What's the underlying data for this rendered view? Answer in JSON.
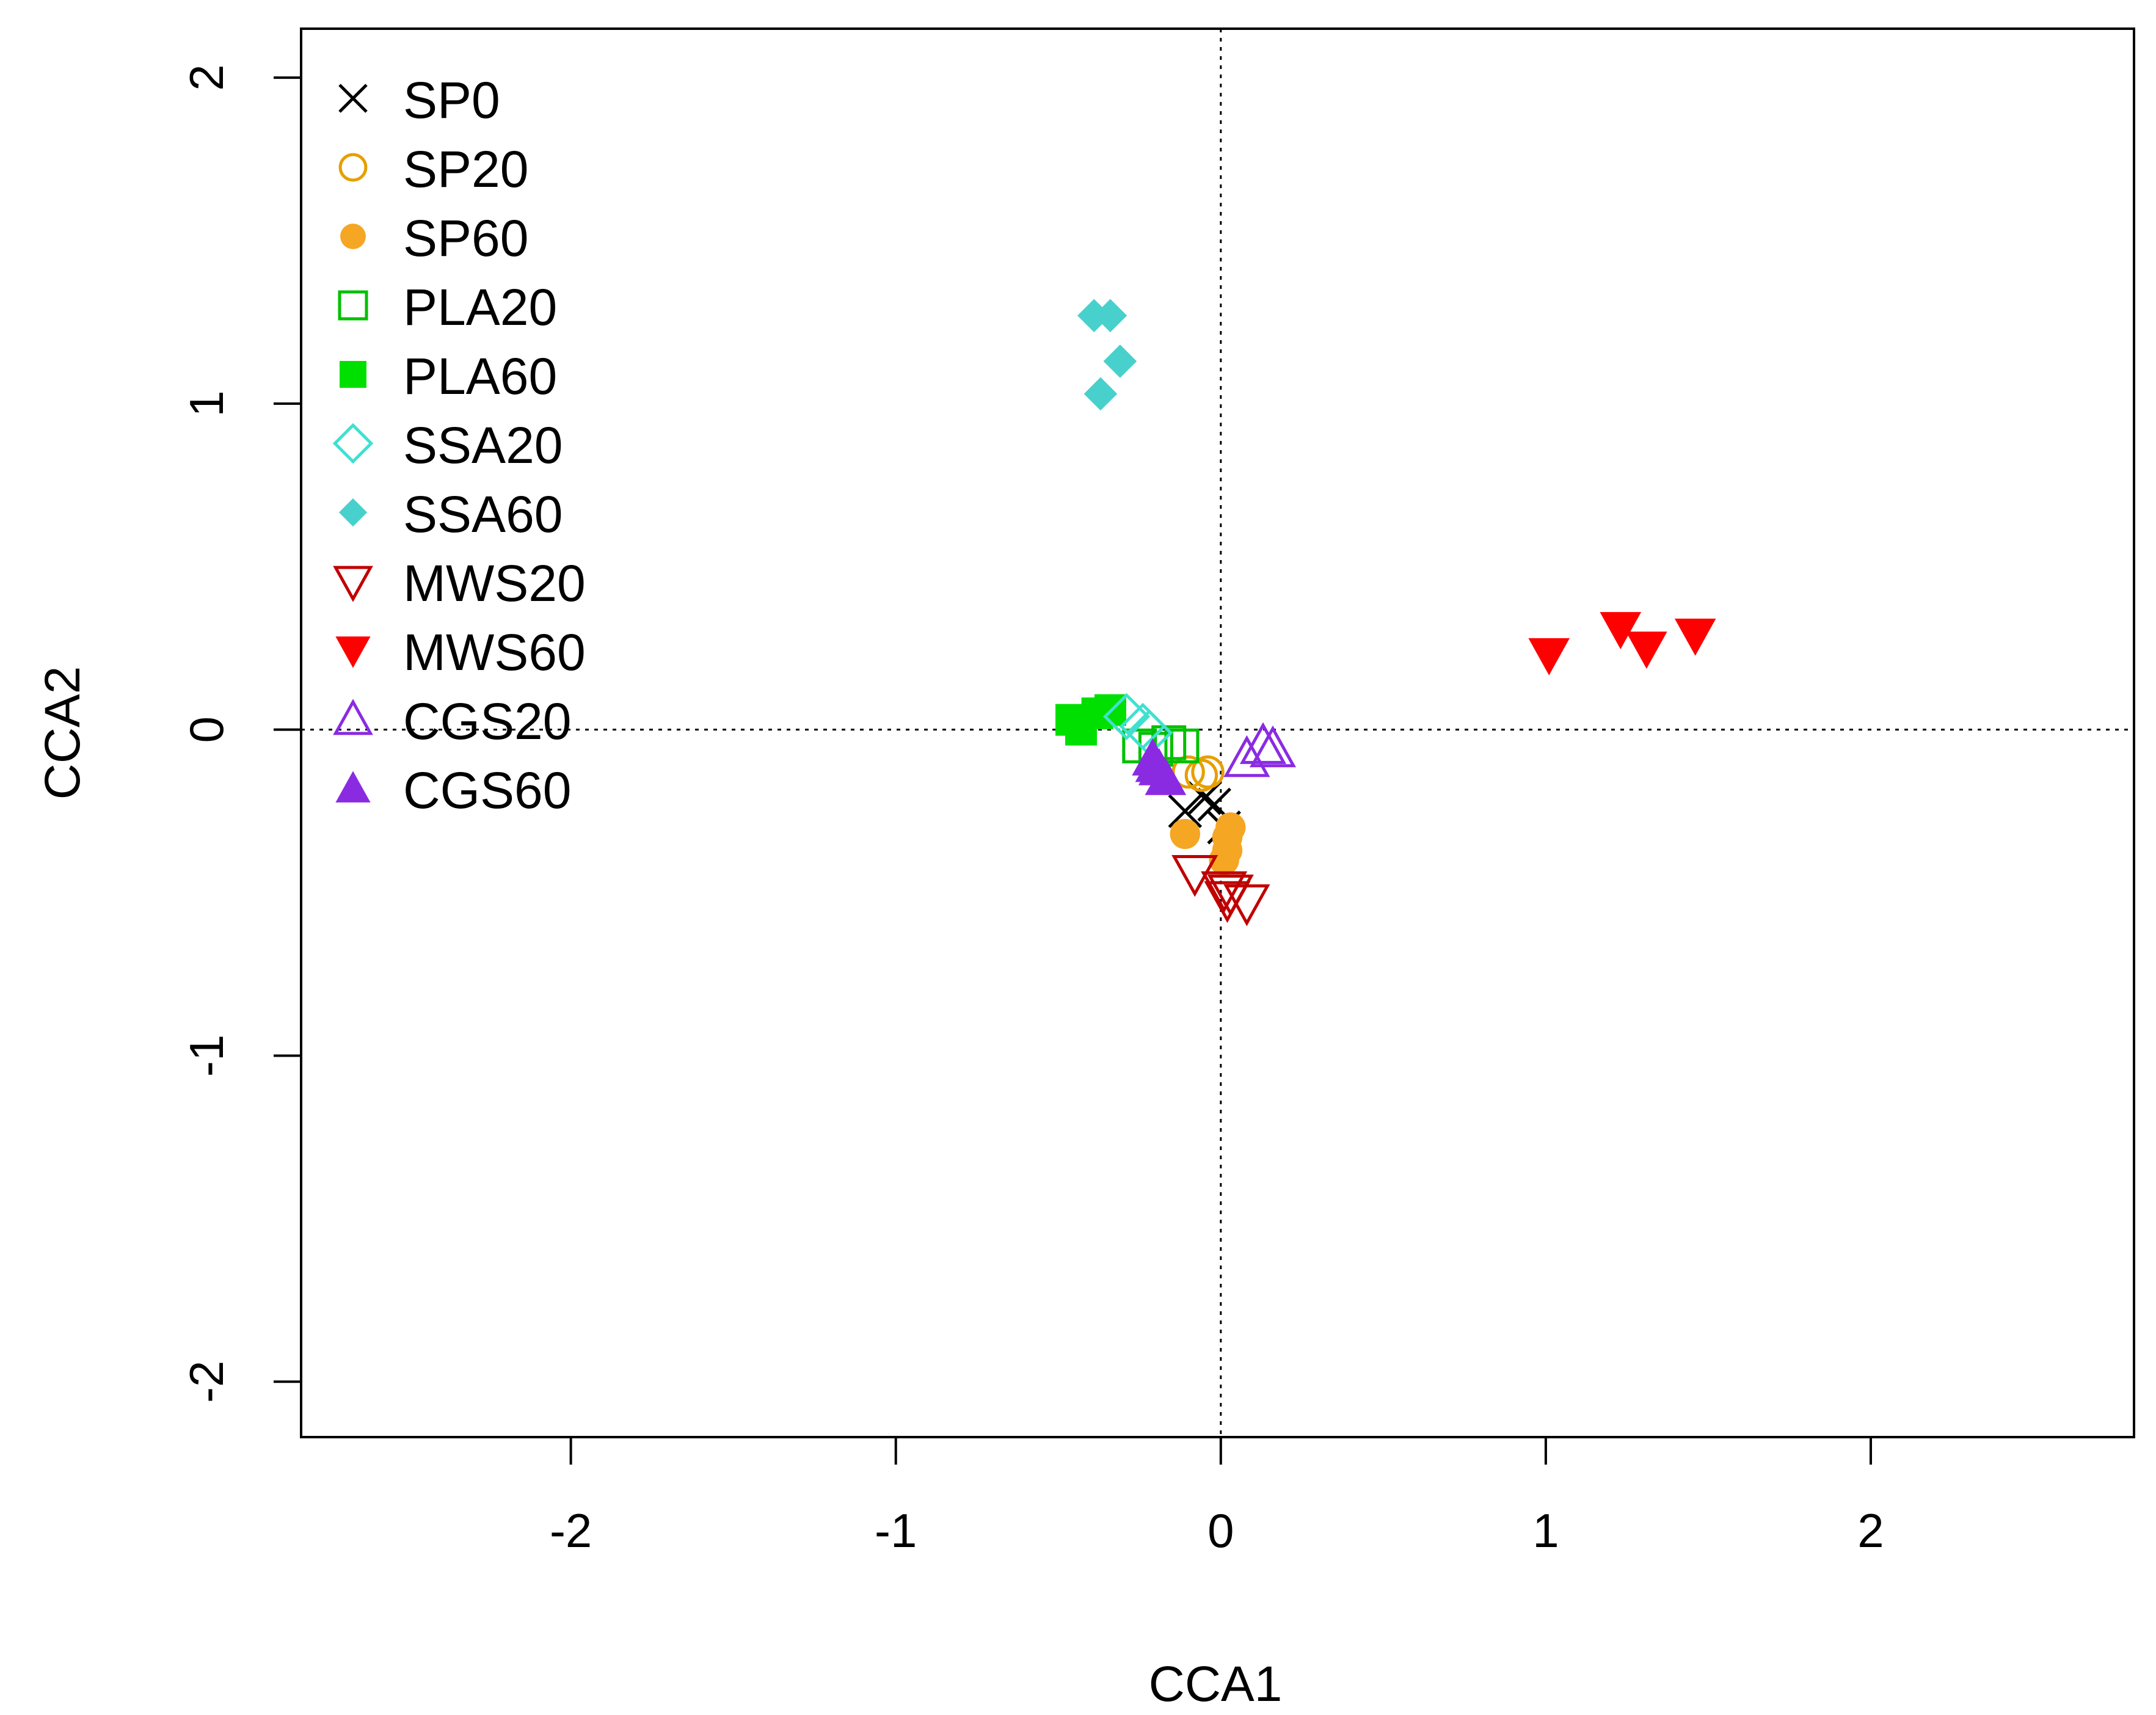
{
  "chart_data": {
    "type": "scatter",
    "title": "",
    "xlabel": "CCA1",
    "ylabel": "CCA2",
    "xlim": [
      -2.83,
      2.81
    ],
    "ylim": [
      -2.17,
      2.15
    ],
    "xticks": [
      "-2",
      "-1",
      "0",
      "1",
      "2"
    ],
    "yticks": [
      "-2",
      "-1",
      "0",
      "1",
      "2"
    ],
    "reference_lines": {
      "x": 0,
      "y": 0,
      "style": "dotted"
    },
    "legend_position": "top-left",
    "series": [
      {
        "name": "SP0",
        "marker": "x",
        "color": "#000000",
        "points": [
          [
            -0.11,
            -0.25
          ],
          [
            -0.05,
            -0.21
          ],
          [
            -0.02,
            -0.23
          ],
          [
            0.01,
            -0.3
          ]
        ]
      },
      {
        "name": "SP20",
        "marker": "circle-open",
        "color": "#E69F00",
        "points": [
          [
            -0.1,
            -0.13
          ],
          [
            -0.06,
            -0.14
          ],
          [
            -0.04,
            -0.13
          ]
        ]
      },
      {
        "name": "SP60",
        "marker": "circle-filled",
        "color": "#F5A623",
        "points": [
          [
            -0.11,
            -0.32
          ],
          [
            0.02,
            -0.33
          ],
          [
            0.03,
            -0.3
          ],
          [
            0.02,
            -0.37
          ],
          [
            0.01,
            -0.4
          ]
        ]
      },
      {
        "name": "PLA20",
        "marker": "square-open",
        "color": "#00C000",
        "points": [
          [
            -0.25,
            -0.05
          ],
          [
            -0.16,
            -0.04
          ],
          [
            -0.12,
            -0.05
          ],
          [
            -0.2,
            -0.06
          ]
        ]
      },
      {
        "name": "PLA60",
        "marker": "square-filled",
        "color": "#00E000",
        "points": [
          [
            -0.46,
            0.03
          ],
          [
            -0.43,
            0.0
          ],
          [
            -0.38,
            0.05
          ],
          [
            -0.34,
            0.06
          ]
        ]
      },
      {
        "name": "SSA20",
        "marker": "diamond-open",
        "color": "#40E0D0",
        "points": [
          [
            -0.29,
            0.04
          ],
          [
            -0.24,
            0.01
          ],
          [
            -0.22,
            -0.01
          ]
        ]
      },
      {
        "name": "SSA60",
        "marker": "diamond-filled",
        "color": "#48D1CC",
        "points": [
          [
            -0.39,
            1.27
          ],
          [
            -0.34,
            1.27
          ],
          [
            -0.31,
            1.13
          ],
          [
            -0.37,
            1.03
          ]
        ]
      },
      {
        "name": "MWS20",
        "marker": "triangle-down-open",
        "color": "#C00000",
        "points": [
          [
            -0.08,
            -0.44
          ],
          [
            0.01,
            -0.49
          ],
          [
            0.03,
            -0.5
          ],
          [
            0.08,
            -0.53
          ],
          [
            0.02,
            -0.52
          ]
        ]
      },
      {
        "name": "MWS60",
        "marker": "triangle-down-filled",
        "color": "#FF0000",
        "points": [
          [
            1.01,
            0.23
          ],
          [
            1.23,
            0.31
          ],
          [
            1.31,
            0.25
          ],
          [
            1.46,
            0.29
          ]
        ]
      },
      {
        "name": "CGS20",
        "marker": "triangle-up-open",
        "color": "#8A2BE2",
        "points": [
          [
            0.08,
            -0.09
          ],
          [
            0.13,
            -0.05
          ],
          [
            0.16,
            -0.06
          ]
        ]
      },
      {
        "name": "CGS60",
        "marker": "triangle-up-filled",
        "color": "#8A2BE2",
        "points": [
          [
            -0.21,
            -0.09
          ],
          [
            -0.19,
            -0.12
          ],
          [
            -0.17,
            -0.15
          ],
          [
            -0.2,
            -0.11
          ]
        ]
      }
    ]
  }
}
